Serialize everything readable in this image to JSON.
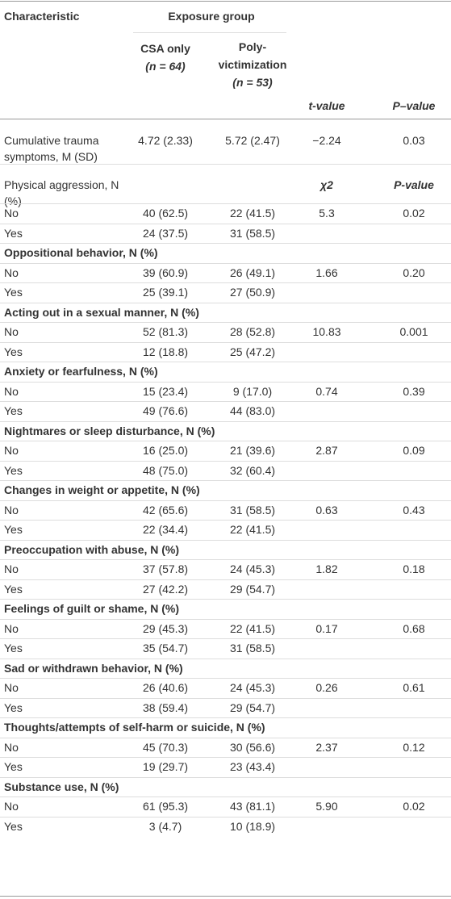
{
  "table": {
    "header": {
      "characteristic": "Characteristic",
      "exposure_group": "Exposure group",
      "csa_only": [
        "CSA only",
        "(n = 64)"
      ],
      "polyvictimization": [
        "Poly-",
        "victimization",
        "(n = 53)"
      ],
      "t_value": "t-value",
      "p_value": "P–value"
    },
    "rows": [
      {
        "label": "Cumulative trauma symptoms, M (SD)",
        "cells": [
          "4.72 (2.33)",
          "5.72 (2.47)",
          "−2.24",
          "0.03"
        ]
      },
      {
        "label": "Physical aggression, N (%)",
        "stat_headers": [
          "χ2",
          "P-value"
        ]
      },
      {
        "label": "No",
        "cells": [
          "40 (62.5)",
          "22 (41.5)",
          "5.3",
          "0.02"
        ]
      },
      {
        "label": "Yes",
        "cells": [
          "24 (37.5)",
          "31 (58.5)"
        ]
      },
      {
        "section": "Oppositional behavior, N (%)"
      },
      {
        "label": "No",
        "cells": [
          "39 (60.9)",
          "26 (49.1)",
          "1.66",
          "0.20"
        ]
      },
      {
        "label": "Yes",
        "cells": [
          "25 (39.1)",
          "27 (50.9)"
        ]
      },
      {
        "section": "Acting out in a sexual manner, N (%)"
      },
      {
        "label": "No",
        "cells": [
          "52 (81.3)",
          "28 (52.8)",
          "10.83",
          "0.001"
        ]
      },
      {
        "label": "Yes",
        "cells": [
          "12 (18.8)",
          "25 (47.2)"
        ]
      },
      {
        "section": "Anxiety or fearfulness, N (%)"
      },
      {
        "label": "No",
        "cells": [
          "15 (23.4)",
          "9 (17.0)",
          "0.74",
          "0.39"
        ]
      },
      {
        "label": "Yes",
        "cells": [
          "49 (76.6)",
          "44 (83.0)"
        ]
      },
      {
        "section": "Nightmares or sleep disturbance, N (%)"
      },
      {
        "label": "No",
        "cells": [
          "16 (25.0)",
          "21 (39.6)",
          "2.87",
          "0.09"
        ]
      },
      {
        "label": "Yes",
        "cells": [
          "48 (75.0)",
          "32 (60.4)"
        ]
      },
      {
        "section": "Changes in weight or appetite, N (%)"
      },
      {
        "label": "No",
        "cells": [
          "42 (65.6)",
          "31 (58.5)",
          "0.63",
          "0.43"
        ]
      },
      {
        "label": "Yes",
        "cells": [
          "22 (34.4)",
          "22 (41.5)"
        ]
      },
      {
        "section": "Preoccupation with abuse, N (%)"
      },
      {
        "label": "No",
        "cells": [
          "37 (57.8)",
          "24 (45.3)",
          "1.82",
          "0.18"
        ]
      },
      {
        "label": "Yes",
        "cells": [
          "27 (42.2)",
          "29 (54.7)"
        ]
      },
      {
        "section": "Feelings of guilt or shame, N (%)"
      },
      {
        "label": "No",
        "cells": [
          "29 (45.3)",
          "22 (41.5)",
          "0.17",
          "0.68"
        ]
      },
      {
        "label": "Yes",
        "cells": [
          "35 (54.7)",
          "31 (58.5)"
        ]
      },
      {
        "section": "Sad or withdrawn behavior, N (%)"
      },
      {
        "label": "No",
        "cells": [
          "26 (40.6)",
          "24 (45.3)",
          "0.26",
          "0.61"
        ]
      },
      {
        "label": "Yes",
        "cells": [
          "38 (59.4)",
          "29 (54.7)"
        ]
      },
      {
        "section": "Thoughts/attempts of self-harm or suicide, N (%)"
      },
      {
        "label": "No",
        "cells": [
          "45 (70.3)",
          "30 (56.6)",
          "2.37",
          "0.12"
        ]
      },
      {
        "label": "Yes",
        "cells": [
          "19 (29.7)",
          "23 (43.4)"
        ]
      },
      {
        "section": "Substance use, N (%)"
      },
      {
        "label": "No",
        "cells": [
          "61 (95.3)",
          "43 (81.1)",
          "5.90",
          "0.02"
        ]
      },
      {
        "label": "Yes",
        "cells": [
          "3 (4.7)",
          "10 (18.9)"
        ]
      }
    ]
  }
}
